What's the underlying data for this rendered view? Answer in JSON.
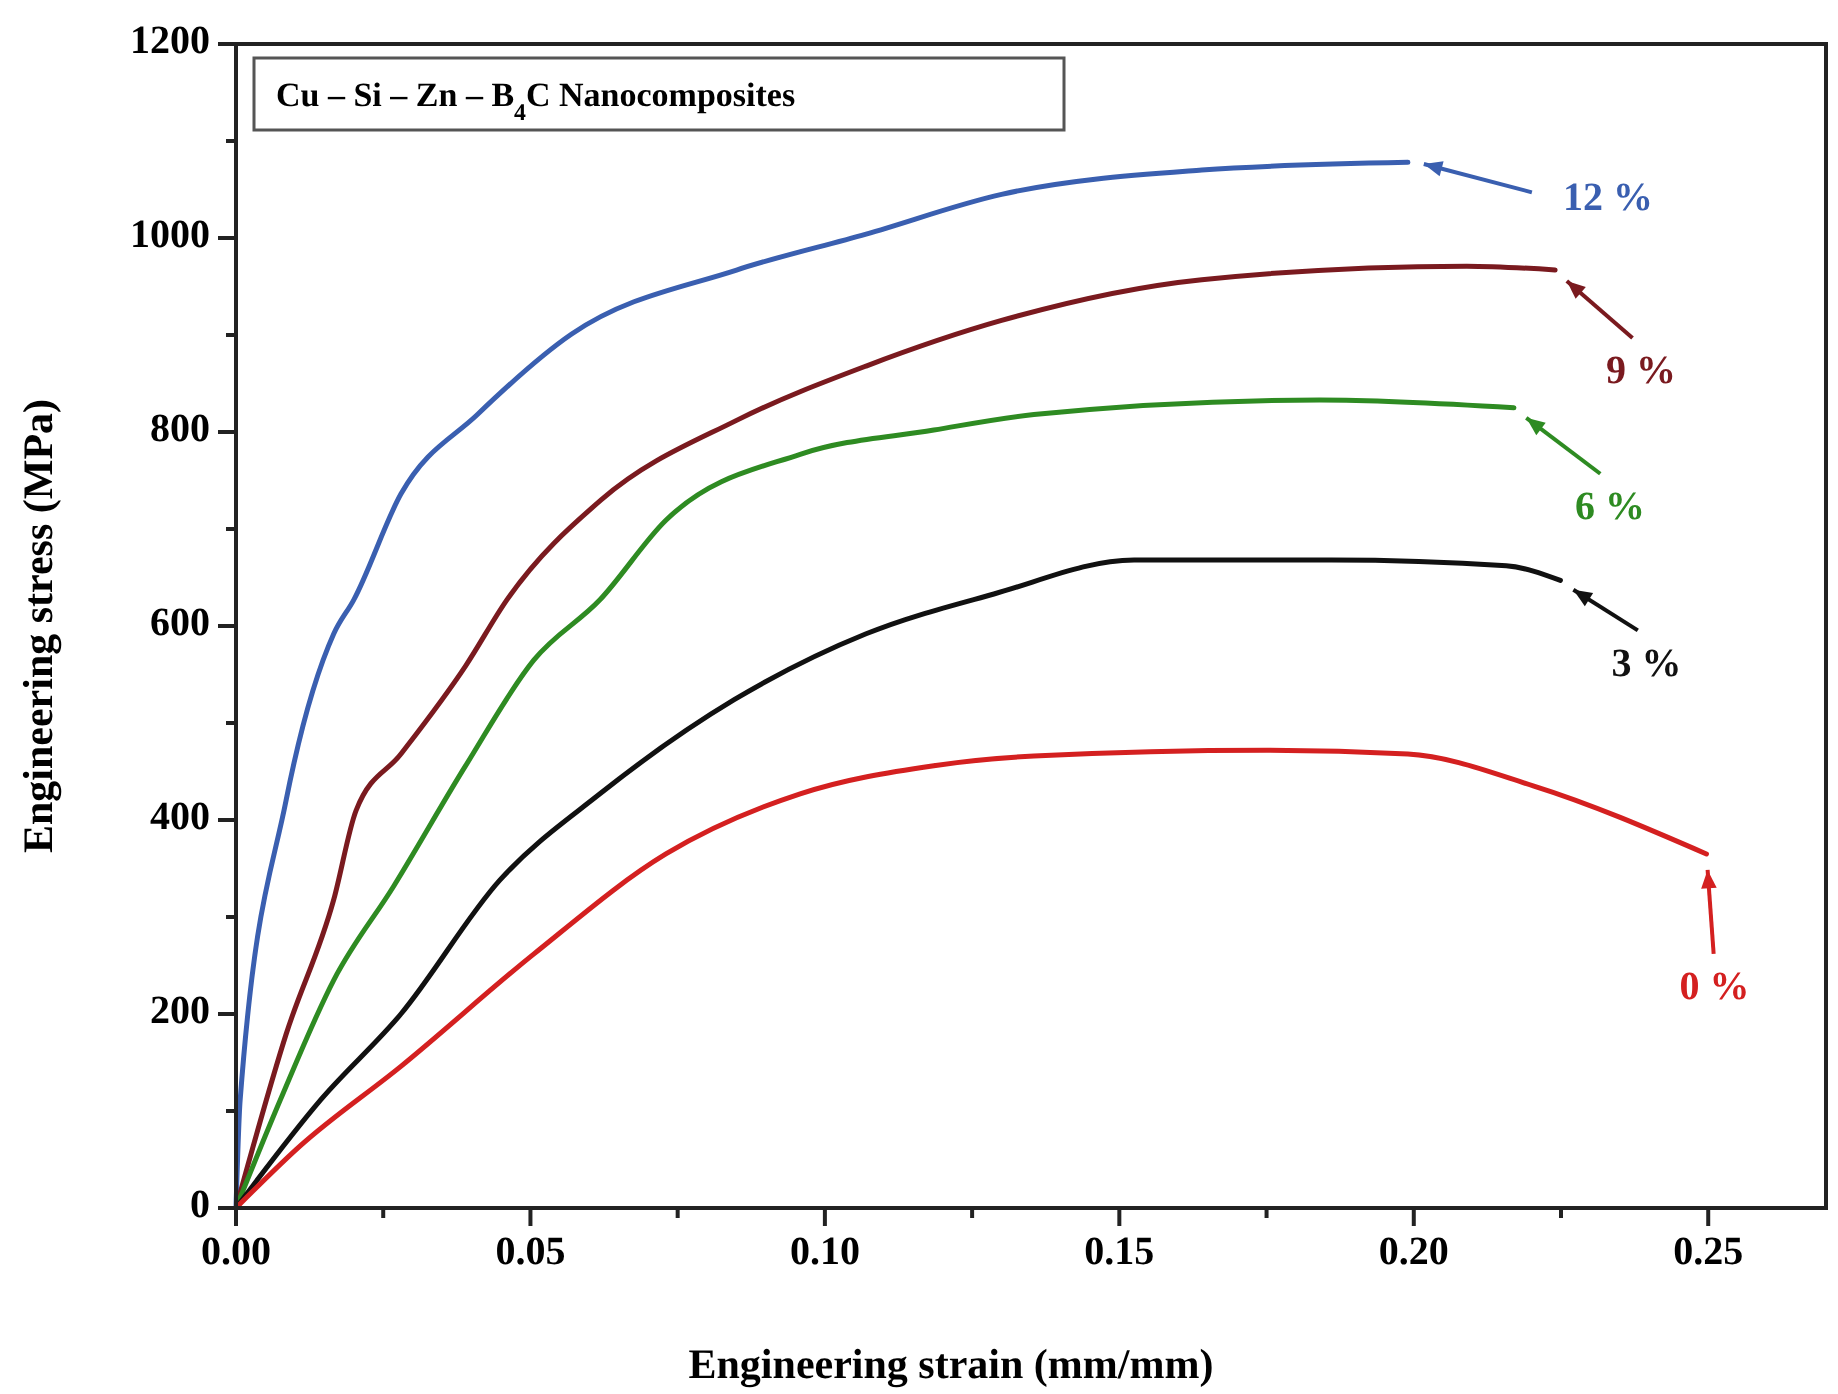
{
  "chart_data": {
    "type": "line",
    "title": "Cu – Si – Zn – B$_{4}$C Nanocomposites",
    "xlabel": "Engineering strain (mm/mm)",
    "ylabel": "Engineering stress (MPa)",
    "xlim": [
      0,
      0.27
    ],
    "ylim": [
      0,
      1200
    ],
    "xticks": [
      {
        "value": 0,
        "label": "0.00"
      },
      {
        "value": 0.025,
        "label": null
      },
      {
        "value": 0.05,
        "label": "0.05"
      },
      {
        "value": 0.075,
        "label": null
      },
      {
        "value": 0.1,
        "label": "0.10"
      },
      {
        "value": 0.125,
        "label": null
      },
      {
        "value": 0.15,
        "label": "0.15"
      },
      {
        "value": 0.175,
        "label": null
      },
      {
        "value": 0.2,
        "label": "0.20"
      },
      {
        "value": 0.225,
        "label": null
      },
      {
        "value": 0.25,
        "label": "0.25"
      }
    ],
    "yticks": [
      0,
      {
        "value": 100,
        "label": null
      },
      200,
      {
        "value": 300,
        "label": null
      },
      400,
      {
        "value": 500,
        "label": null
      },
      600,
      {
        "value": 700,
        "label": null
      },
      800,
      {
        "value": 900,
        "label": null
      },
      1000,
      {
        "value": 1100,
        "label": null
      },
      1200
    ],
    "grid": false,
    "legend": "right",
    "marker": "none",
    "line_style": "solid",
    "series": [
      {
        "name": "12 %",
        "color": "#3a5fb0",
        "x": [
          0,
          0.0007,
          0.0085,
          0.0166,
          0.02,
          0.028,
          0.041,
          0.057,
          0.085,
          0.107,
          0.13,
          0.164,
          0.199
        ],
        "values": [
          0,
          111,
          420,
          592,
          627,
          736,
          818,
          901,
          967,
          1004,
          1045,
          1070,
          1078
        ]
      },
      {
        "name": "9 %",
        "color": "#7a1a1f",
        "x": [
          0,
          0.0085,
          0.0166,
          0.0204,
          0.028,
          0.039,
          0.046,
          0.062,
          0.085,
          0.107,
          0.13,
          0.164,
          0.209,
          0.224
        ],
        "values": [
          0,
          179,
          318,
          410,
          468,
          559,
          627,
          730,
          812,
          868,
          915,
          957,
          971,
          967
        ]
      },
      {
        "name": "6 %",
        "color": "#2e8b22",
        "x": [
          0,
          0.0075,
          0.0166,
          0.0268,
          0.039,
          0.0506,
          0.0618,
          0.073,
          0.0958,
          0.1185,
          0.1355,
          0.184,
          0.217
        ],
        "values": [
          0,
          111,
          235,
          332,
          456,
          565,
          627,
          709,
          777,
          802,
          818,
          833,
          825
        ]
      },
      {
        "name": "3 %",
        "color": "#111111",
        "x": [
          0,
          0.0143,
          0.028,
          0.0448,
          0.0618,
          0.0846,
          0.107,
          0.1287,
          0.1525,
          0.186,
          0.2157,
          0.2249
        ],
        "values": [
          0,
          111,
          200,
          338,
          427,
          524,
          592,
          633,
          668,
          668,
          662,
          647
        ]
      },
      {
        "name": "0 %",
        "color": "#d42020",
        "x": [
          0,
          0.0109,
          0.028,
          0.0506,
          0.073,
          0.0958,
          0.1185,
          0.1355,
          0.175,
          0.199,
          0.2204,
          0.2497
        ],
        "values": [
          0,
          64,
          146,
          262,
          365,
          427,
          456,
          466,
          472,
          468,
          435,
          365
        ]
      }
    ]
  }
}
